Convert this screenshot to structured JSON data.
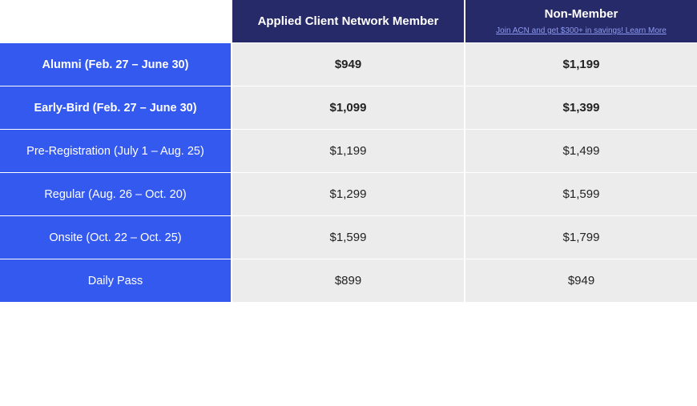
{
  "header": {
    "member": "Applied Client Network Member",
    "non_member": "Non-Member",
    "non_member_link": "Join ACN and get $300+ in savings! Learn More"
  },
  "rows": [
    {
      "label": "Alumni (Feb. 27 – June 30)",
      "member": "$949",
      "non_member": "$1,199",
      "bold": true
    },
    {
      "label": "Early-Bird (Feb. 27 – June 30)",
      "member": "$1,099",
      "non_member": "$1,399",
      "bold": true
    },
    {
      "label": "Pre-Registration (July 1 – Aug. 25)",
      "member": "$1,199",
      "non_member": "$1,499"
    },
    {
      "label": "Regular (Aug. 26 – Oct. 20)",
      "member": "$1,299",
      "non_member": "$1,599"
    },
    {
      "label": "Onsite (Oct. 22 – Oct. 25)",
      "member": "$1,599",
      "non_member": "$1,799"
    },
    {
      "label": "Daily Pass",
      "member": "$899",
      "non_member": "$949"
    }
  ],
  "colors": {
    "label_bg": "#3459ef",
    "header_bg": "#272a68",
    "cell_bg": "#ececec"
  }
}
